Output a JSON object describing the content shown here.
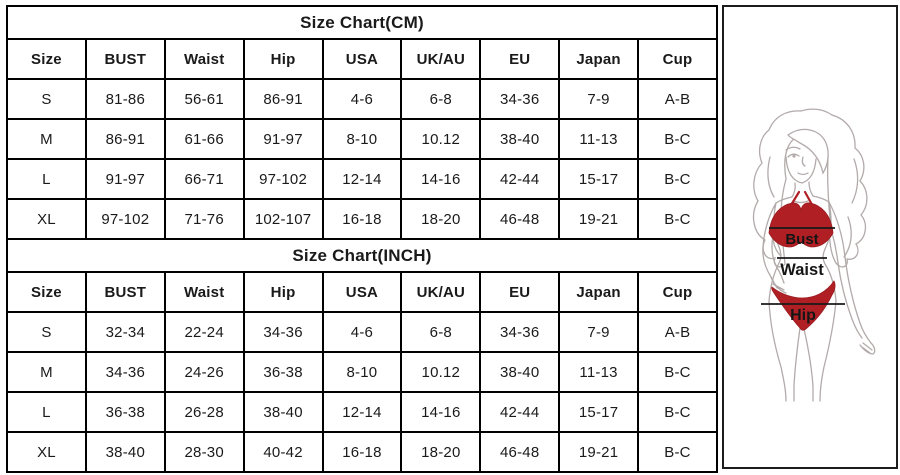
{
  "tables": [
    {
      "title": "Size Chart(CM)",
      "headers": [
        "Size",
        "BUST",
        "Waist",
        "Hip",
        "USA",
        "UK/AU",
        "EU",
        "Japan",
        "Cup"
      ],
      "rows": [
        [
          "S",
          "81-86",
          "56-61",
          "86-91",
          "4-6",
          "6-8",
          "34-36",
          "7-9",
          "A-B"
        ],
        [
          "M",
          "86-91",
          "61-66",
          "91-97",
          "8-10",
          "10.12",
          "38-40",
          "11-13",
          "B-C"
        ],
        [
          "L",
          "91-97",
          "66-71",
          "97-102",
          "12-14",
          "14-16",
          "42-44",
          "15-17",
          "B-C"
        ],
        [
          "XL",
          "97-102",
          "71-76",
          "102-107",
          "16-18",
          "18-20",
          "46-48",
          "19-21",
          "B-C"
        ]
      ]
    },
    {
      "title": "Size Chart(INCH)",
      "headers": [
        "Size",
        "BUST",
        "Waist",
        "Hip",
        "USA",
        "UK/AU",
        "EU",
        "Japan",
        "Cup"
      ],
      "rows": [
        [
          "S",
          "32-34",
          "22-24",
          "34-36",
          "4-6",
          "6-8",
          "34-36",
          "7-9",
          "A-B"
        ],
        [
          "M",
          "34-36",
          "24-26",
          "36-38",
          "8-10",
          "10.12",
          "38-40",
          "11-13",
          "B-C"
        ],
        [
          "L",
          "36-38",
          "26-28",
          "38-40",
          "12-14",
          "14-16",
          "42-44",
          "15-17",
          "B-C"
        ],
        [
          "XL",
          "38-40",
          "28-30",
          "40-42",
          "16-18",
          "18-20",
          "46-48",
          "19-21",
          "B-C"
        ]
      ]
    }
  ],
  "figure": {
    "labels": {
      "bust": "Bust",
      "waist": "Waist",
      "hip": "Hip"
    },
    "colors": {
      "bikini_red": "#b01f24",
      "line_art_gray": "#b3aaaa",
      "label_black": "#151515"
    }
  }
}
